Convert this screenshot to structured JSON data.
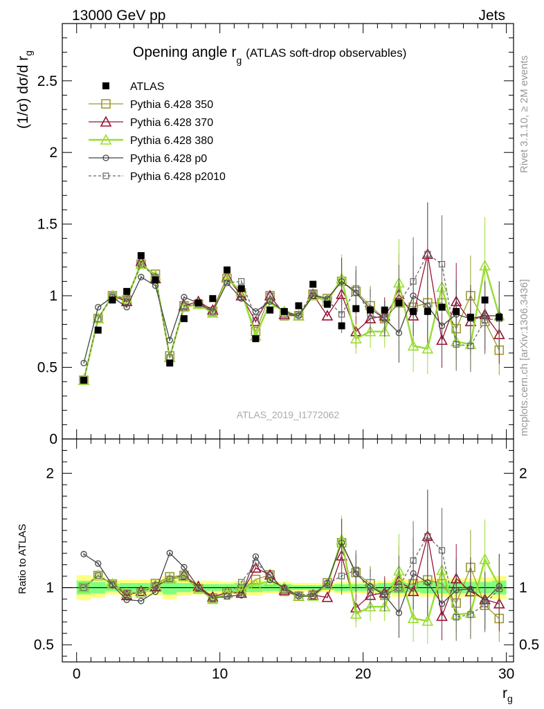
{
  "header": {
    "left": "13000 GeV pp",
    "right": "Jets"
  },
  "side_labels": {
    "top": "Rivet 3.1.10, ≥ 2M events",
    "bottom": "mcplots.cern.ch [arXiv:1306.3436]"
  },
  "watermark": "ATLAS_2019_I1772062",
  "colors": {
    "atlas": "#000000",
    "p350": "#999933",
    "p370": "#991133",
    "p380": "#99dd33",
    "p0": "#444444",
    "p2010": "#666666",
    "band_inner": "#80ff80",
    "band_outer": "#ffff80"
  },
  "chart_data": [
    {
      "type": "scatter",
      "title": "Opening angle r",
      "title_sub": "g",
      "title_suffix": "(ATLAS soft-drop observables)",
      "ylabel": "(1/σ) dσ/d r",
      "ylabel_sub": "g",
      "xlim": [
        -1,
        30.5
      ],
      "ylim": [
        0,
        2.9
      ],
      "y_ticks": [
        0,
        0.5,
        1,
        1.5,
        2,
        2.5
      ],
      "y_tick_labels": [
        "0",
        "0.5",
        "1",
        "1.5",
        "2",
        "2.5"
      ],
      "legend_position": "top-left",
      "x": [
        0.5,
        1.5,
        2.5,
        3.5,
        4.5,
        5.5,
        6.5,
        7.5,
        8.5,
        9.5,
        10.5,
        11.5,
        12.5,
        13.5,
        14.5,
        15.5,
        16.5,
        17.5,
        18.5,
        19.5,
        20.5,
        21.5,
        22.5,
        23.5,
        24.5,
        25.5,
        26.5,
        27.5,
        28.5,
        29.5
      ],
      "series": [
        {
          "name": "ATLAS",
          "key": "atlas",
          "marker": "square-filled",
          "values": [
            0.41,
            0.76,
            0.97,
            1.03,
            1.28,
            1.11,
            0.53,
            0.84,
            0.95,
            0.98,
            1.18,
            1.05,
            0.7,
            0.9,
            0.89,
            0.93,
            1.08,
            0.94,
            0.79,
            0.91,
            0.9,
            0.9,
            0.95,
            0.89,
            0.89,
            0.92,
            0.89,
            0.85,
            0.97,
            0.85
          ]
        },
        {
          "name": "Pythia 6.428 350",
          "key": "p350",
          "marker": "square-open",
          "values": [
            0.41,
            0.84,
            1.0,
            0.97,
            1.22,
            1.15,
            0.58,
            0.93,
            0.94,
            0.89,
            1.12,
            1.02,
            0.75,
            1.0,
            0.86,
            0.86,
            1.01,
            0.98,
            1.1,
            1.03,
            0.93,
            0.84,
            0.95,
            0.92,
            0.95,
            0.95,
            0.77,
            1.0,
            0.82,
            0.62
          ]
        },
        {
          "name": "Pythia 6.428 370",
          "key": "p370",
          "marker": "triangle-open",
          "values": [
            0.41,
            0.84,
            1.0,
            0.96,
            1.24,
            1.12,
            0.57,
            0.93,
            0.96,
            0.9,
            1.13,
            1.0,
            0.82,
            1.0,
            0.87,
            0.86,
            1.01,
            0.86,
            1.01,
            0.75,
            0.84,
            0.86,
            1.01,
            0.86,
            1.29,
            0.69,
            0.96,
            0.82,
            0.87,
            0.73
          ]
        },
        {
          "name": "Pythia 6.428 380",
          "key": "p380",
          "marker": "triangle-open",
          "values": [
            0.41,
            0.84,
            1.0,
            0.98,
            1.22,
            1.14,
            0.57,
            0.92,
            0.94,
            0.88,
            1.12,
            1.03,
            0.72,
            0.95,
            0.89,
            0.86,
            1.0,
            0.96,
            1.12,
            0.7,
            0.75,
            0.75,
            1.09,
            0.65,
            0.63,
            1.06,
            0.68,
            0.66,
            1.21,
            0.86
          ]
        },
        {
          "name": "Pythia 6.428 p0",
          "key": "p0",
          "marker": "circle-open",
          "values": [
            0.53,
            0.92,
            0.99,
            0.92,
            1.13,
            1.07,
            0.69,
            0.99,
            0.95,
            0.89,
            1.09,
            0.98,
            0.89,
            0.96,
            0.89,
            0.86,
            1.0,
            0.98,
            1.1,
            1.02,
            0.91,
            0.84,
            0.74,
            1.0,
            0.93,
            0.79,
            0.87,
            0.84,
            0.86,
            0.86
          ]
        },
        {
          "name": "Pythia 6.428 p2010",
          "key": "p2010",
          "marker": "square-small",
          "values": [
            0.41,
            0.84,
            1.0,
            0.98,
            1.22,
            1.13,
            0.57,
            0.93,
            0.94,
            0.89,
            1.09,
            1.1,
            0.85,
            1.0,
            0.87,
            0.87,
            1.02,
            0.97,
            0.87,
            1.05,
            0.86,
            0.84,
            0.95,
            1.1,
            1.29,
            1.22,
            0.66,
            0.65,
            0.83,
            0.84
          ]
        }
      ]
    },
    {
      "type": "scatter",
      "ylabel": "Ratio to ATLAS",
      "xlabel": "r",
      "xlabel_sub": "g",
      "xlim": [
        -1,
        30.5
      ],
      "ylim": [
        0.35,
        2.3
      ],
      "x_ticks": [
        0,
        10,
        20,
        30
      ],
      "x_tick_labels": [
        "0",
        "10",
        "20",
        "30"
      ],
      "y_ticks": [
        0.5,
        1,
        2
      ],
      "y_tick_labels": [
        "0.5",
        "1",
        "2"
      ],
      "reference_line": 1,
      "band_inner_halfwidth": [
        0.06,
        0.05,
        0.03,
        0.04,
        0.04,
        0.04,
        0.06,
        0.04,
        0.03,
        0.03,
        0.03,
        0.04,
        0.04,
        0.03,
        0.03,
        0.02,
        0.02,
        0.02,
        0.03,
        0.03,
        0.03,
        0.04,
        0.05,
        0.04,
        0.05,
        0.05,
        0.05,
        0.05,
        0.05,
        0.06
      ],
      "band_outer_halfwidth": [
        0.11,
        0.09,
        0.06,
        0.07,
        0.07,
        0.07,
        0.1,
        0.07,
        0.06,
        0.06,
        0.05,
        0.06,
        0.07,
        0.05,
        0.05,
        0.04,
        0.04,
        0.04,
        0.05,
        0.05,
        0.05,
        0.06,
        0.08,
        0.07,
        0.08,
        0.08,
        0.08,
        0.08,
        0.09,
        0.1
      ]
    }
  ]
}
